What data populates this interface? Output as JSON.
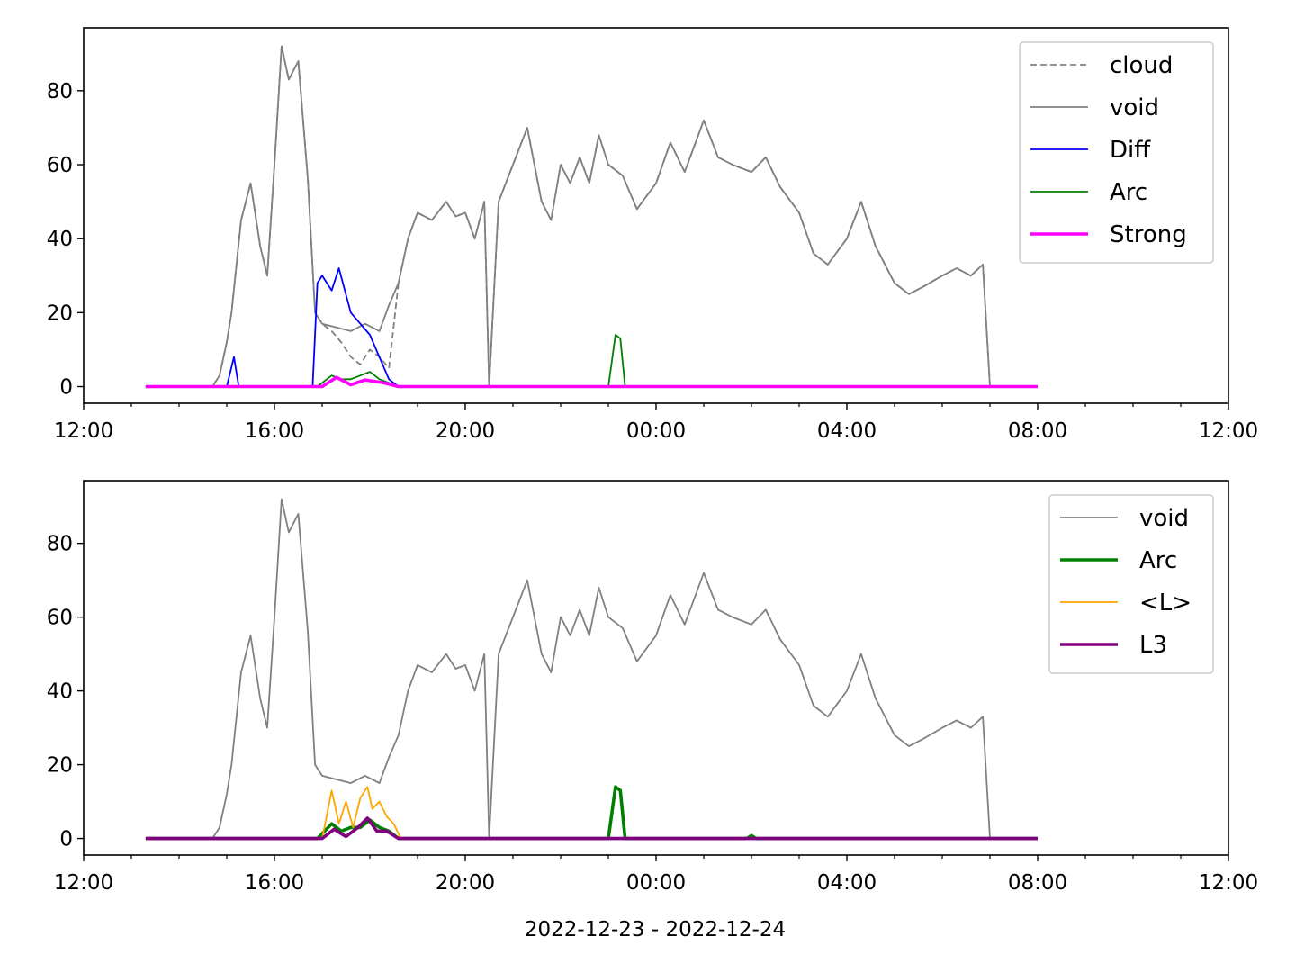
{
  "xlabel": "2022-12-23 - 2022-12-24",
  "colors": {
    "cloud": "#808080",
    "void": "#808080",
    "diff": "#0000ff",
    "arc": "#008000",
    "strong": "#ff00ff",
    "lavg": "#ffa500",
    "l3": "#800080"
  },
  "chart_data": [
    {
      "type": "line",
      "x_unit": "hours since 2022-12-23 00:00",
      "xlim": [
        12,
        36
      ],
      "ylim": [
        -4.5,
        97
      ],
      "x_ticks": [
        {
          "v": 12,
          "label": "12:00"
        },
        {
          "v": 16,
          "label": "16:00"
        },
        {
          "v": 20,
          "label": "20:00"
        },
        {
          "v": 24,
          "label": "00:00"
        },
        {
          "v": 28,
          "label": "04:00"
        },
        {
          "v": 32,
          "label": "08:00"
        },
        {
          "v": 36,
          "label": "12:00"
        }
      ],
      "y_ticks": [
        0,
        20,
        40,
        60,
        80
      ],
      "legend_position": "upper-right",
      "series": [
        {
          "name": "cloud",
          "key": "cloud",
          "style": "dashed",
          "width": 1.8,
          "x": [
            13.3,
            14.7,
            14.85,
            15.0,
            15.1,
            15.3,
            15.5,
            15.7,
            15.85,
            16.0,
            16.15,
            16.3,
            16.5,
            16.7,
            16.85,
            17.0,
            17.2,
            17.4,
            17.6,
            17.8,
            18.0,
            18.2,
            18.4,
            18.6,
            18.8,
            19.0,
            19.3,
            19.6,
            19.8,
            20.0,
            20.2,
            20.4,
            20.5,
            20.7,
            21.0,
            21.3,
            21.6,
            21.8,
            22.0,
            22.2,
            22.4,
            22.6,
            22.8,
            23.0,
            23.3,
            23.6,
            24.0,
            24.3,
            24.6,
            25.0,
            25.3,
            25.6,
            26.0,
            26.3,
            26.6,
            27.0,
            27.3,
            27.6,
            28.0,
            28.3,
            28.6,
            29.0,
            29.3,
            29.6,
            30.0,
            30.3,
            30.6,
            30.85,
            31.0,
            32.0
          ],
          "y": [
            0,
            0,
            3,
            12,
            20,
            45,
            55,
            38,
            30,
            60,
            92,
            83,
            88,
            56,
            20,
            17,
            15,
            12,
            8,
            6,
            10,
            8,
            5,
            28,
            40,
            47,
            45,
            50,
            46,
            47,
            40,
            50,
            0,
            50,
            60,
            70,
            50,
            45,
            60,
            55,
            62,
            55,
            68,
            60,
            57,
            48,
            55,
            66,
            58,
            72,
            62,
            60,
            58,
            62,
            54,
            47,
            36,
            33,
            40,
            50,
            38,
            28,
            25,
            27,
            30,
            32,
            30,
            33,
            0,
            0
          ]
        },
        {
          "name": "void",
          "key": "void",
          "style": "solid",
          "width": 1.8,
          "x": [
            13.3,
            14.7,
            14.85,
            15.0,
            15.1,
            15.3,
            15.5,
            15.7,
            15.85,
            16.0,
            16.15,
            16.3,
            16.5,
            16.7,
            16.85,
            17.0,
            17.3,
            17.6,
            17.9,
            18.2,
            18.4,
            18.6,
            18.8,
            19.0,
            19.3,
            19.6,
            19.8,
            20.0,
            20.2,
            20.4,
            20.5,
            20.7,
            21.0,
            21.3,
            21.6,
            21.8,
            22.0,
            22.2,
            22.4,
            22.6,
            22.8,
            23.0,
            23.3,
            23.6,
            24.0,
            24.3,
            24.6,
            25.0,
            25.3,
            25.6,
            26.0,
            26.3,
            26.6,
            27.0,
            27.3,
            27.6,
            28.0,
            28.3,
            28.6,
            29.0,
            29.3,
            29.6,
            30.0,
            30.3,
            30.6,
            30.85,
            31.0,
            32.0
          ],
          "y": [
            0,
            0,
            3,
            12,
            20,
            45,
            55,
            38,
            30,
            60,
            92,
            83,
            88,
            56,
            20,
            17,
            16,
            15,
            17,
            15,
            22,
            28,
            40,
            47,
            45,
            50,
            46,
            47,
            40,
            50,
            0,
            50,
            60,
            70,
            50,
            45,
            60,
            55,
            62,
            55,
            68,
            60,
            57,
            48,
            55,
            66,
            58,
            72,
            62,
            60,
            58,
            62,
            54,
            47,
            36,
            33,
            40,
            50,
            38,
            28,
            25,
            27,
            30,
            32,
            30,
            33,
            0,
            0
          ]
        },
        {
          "name": "Diff",
          "key": "diff",
          "style": "solid",
          "width": 1.8,
          "x": [
            13.3,
            15.0,
            15.15,
            15.25,
            15.35,
            16.8,
            16.9,
            17.0,
            17.2,
            17.35,
            17.6,
            17.8,
            18.0,
            18.2,
            18.4,
            18.6,
            32.0
          ],
          "y": [
            0,
            0,
            8,
            0,
            0,
            0,
            28,
            30,
            26,
            32,
            20,
            17,
            14,
            8,
            2,
            0,
            0
          ]
        },
        {
          "name": "Arc",
          "key": "arc",
          "style": "solid",
          "width": 1.8,
          "x": [
            13.3,
            16.9,
            17.2,
            17.4,
            17.6,
            17.8,
            18.0,
            18.2,
            18.4,
            18.6,
            23.0,
            23.15,
            23.25,
            23.35,
            32.0
          ],
          "y": [
            0,
            0,
            3,
            2,
            2,
            3,
            4,
            2,
            1,
            0,
            0,
            14,
            13,
            0,
            0
          ]
        },
        {
          "name": "Strong",
          "key": "strong",
          "style": "solid",
          "width": 3.6,
          "x": [
            13.3,
            17.0,
            17.3,
            17.6,
            17.9,
            18.3,
            18.6,
            32.0
          ],
          "y": [
            0,
            0,
            2.5,
            0.5,
            1.8,
            1.0,
            0,
            0
          ]
        }
      ]
    },
    {
      "type": "line",
      "x_unit": "hours since 2022-12-23 00:00",
      "xlim": [
        12,
        36
      ],
      "ylim": [
        -4.5,
        97
      ],
      "x_ticks": [
        {
          "v": 12,
          "label": "12:00"
        },
        {
          "v": 16,
          "label": "16:00"
        },
        {
          "v": 20,
          "label": "20:00"
        },
        {
          "v": 24,
          "label": "00:00"
        },
        {
          "v": 28,
          "label": "04:00"
        },
        {
          "v": 32,
          "label": "08:00"
        },
        {
          "v": 36,
          "label": "12:00"
        }
      ],
      "y_ticks": [
        0,
        20,
        40,
        60,
        80
      ],
      "legend_position": "upper-right",
      "series": [
        {
          "name": "void",
          "key": "void",
          "style": "solid",
          "width": 1.8,
          "x": [
            13.3,
            14.7,
            14.85,
            15.0,
            15.1,
            15.3,
            15.5,
            15.7,
            15.85,
            16.0,
            16.15,
            16.3,
            16.5,
            16.7,
            16.85,
            17.0,
            17.3,
            17.6,
            17.9,
            18.2,
            18.4,
            18.6,
            18.8,
            19.0,
            19.3,
            19.6,
            19.8,
            20.0,
            20.2,
            20.4,
            20.5,
            20.7,
            21.0,
            21.3,
            21.6,
            21.8,
            22.0,
            22.2,
            22.4,
            22.6,
            22.8,
            23.0,
            23.3,
            23.6,
            24.0,
            24.3,
            24.6,
            25.0,
            25.3,
            25.6,
            26.0,
            26.3,
            26.6,
            27.0,
            27.3,
            27.6,
            28.0,
            28.3,
            28.6,
            29.0,
            29.3,
            29.6,
            30.0,
            30.3,
            30.6,
            30.85,
            31.0,
            32.0
          ],
          "y": [
            0,
            0,
            3,
            12,
            20,
            45,
            55,
            38,
            30,
            60,
            92,
            83,
            88,
            56,
            20,
            17,
            16,
            15,
            17,
            15,
            22,
            28,
            40,
            47,
            45,
            50,
            46,
            47,
            40,
            50,
            0,
            50,
            60,
            70,
            50,
            45,
            60,
            55,
            62,
            55,
            68,
            60,
            57,
            48,
            55,
            66,
            58,
            72,
            62,
            60,
            58,
            62,
            54,
            47,
            36,
            33,
            40,
            50,
            38,
            28,
            25,
            27,
            30,
            32,
            30,
            33,
            0,
            0
          ]
        },
        {
          "name": "Arc",
          "key": "arc",
          "style": "solid",
          "width": 3.6,
          "x": [
            13.3,
            16.9,
            17.2,
            17.4,
            17.6,
            17.8,
            18.0,
            18.2,
            18.4,
            18.6,
            23.0,
            23.15,
            23.25,
            23.35,
            25.9,
            26.0,
            26.1,
            32.0
          ],
          "y": [
            0,
            0,
            4,
            2,
            3,
            3,
            5,
            3,
            2,
            0,
            0,
            14,
            13,
            0,
            0,
            0.8,
            0,
            0
          ]
        },
        {
          "name": "<L>",
          "key": "lavg",
          "style": "solid",
          "width": 1.8,
          "x": [
            13.3,
            17.0,
            17.2,
            17.35,
            17.5,
            17.65,
            17.8,
            17.95,
            18.05,
            18.2,
            18.35,
            18.5,
            18.65,
            32.0
          ],
          "y": [
            0,
            0,
            13,
            4,
            10,
            3,
            11,
            14,
            8,
            10,
            6,
            4,
            0,
            0
          ]
        },
        {
          "name": "L3",
          "key": "l3",
          "style": "solid",
          "width": 3.6,
          "x": [
            13.3,
            17.0,
            17.25,
            17.5,
            17.75,
            17.95,
            18.15,
            18.35,
            18.6,
            32.0
          ],
          "y": [
            0,
            0,
            2.5,
            0.5,
            3.0,
            5.5,
            2.0,
            2.0,
            0,
            0
          ]
        }
      ]
    }
  ]
}
